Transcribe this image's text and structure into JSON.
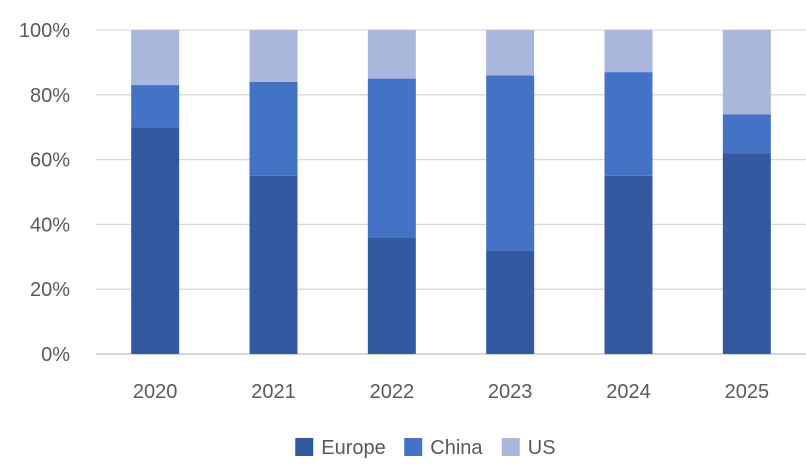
{
  "chart_data": {
    "type": "bar",
    "stacked": true,
    "categories": [
      "2020",
      "2021",
      "2022",
      "2023",
      "2024",
      "2025"
    ],
    "series": [
      {
        "name": "Europe",
        "color": "#335AA1",
        "values": [
          70,
          55,
          36,
          32,
          55,
          62
        ]
      },
      {
        "name": "China",
        "color": "#4472C4",
        "values": [
          13,
          29,
          49,
          54,
          32,
          12
        ]
      },
      {
        "name": "US",
        "color": "#A9B7DC",
        "values": [
          17,
          16,
          15,
          14,
          13,
          26
        ]
      }
    ],
    "ylim": [
      0,
      100
    ],
    "yticks": [
      "0%",
      "20%",
      "40%",
      "60%",
      "80%",
      "100%"
    ],
    "ytick_values": [
      0,
      20,
      40,
      60,
      80,
      100
    ],
    "grid": true,
    "legend": "bottom"
  }
}
